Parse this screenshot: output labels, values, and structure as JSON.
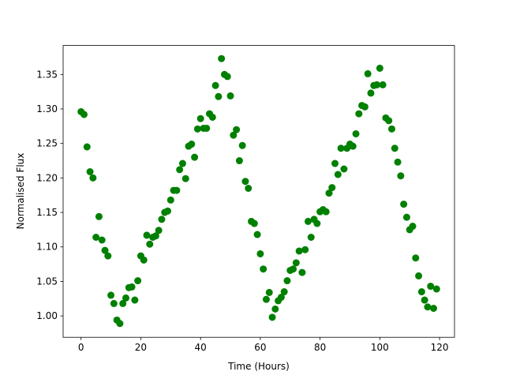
{
  "chart_data": {
    "type": "scatter",
    "xlabel": "Time (Hours)",
    "ylabel": "Normalised Flux",
    "color": "#008000",
    "xlim": [
      -6,
      125
    ],
    "ylim": [
      0.969,
      1.392
    ],
    "xticks": [
      0,
      20,
      40,
      60,
      80,
      100,
      120
    ],
    "yticks": [
      {
        "value": 1.0,
        "label": "1.00"
      },
      1.05,
      {
        "value": 1.1,
        "label": "1.10"
      },
      1.15,
      {
        "value": 1.2,
        "label": "1.20"
      },
      1.25,
      {
        "value": 1.3,
        "label": "1.30"
      },
      1.35
    ],
    "x": [
      0,
      1,
      2,
      3,
      4,
      5,
      6,
      7,
      8,
      9,
      10,
      11,
      12,
      13,
      14,
      15,
      16,
      17,
      18,
      19,
      20,
      21,
      22,
      23,
      24,
      25,
      26,
      27,
      28,
      29,
      30,
      31,
      32,
      33,
      34,
      35,
      36,
      37,
      38,
      39,
      40,
      41,
      42,
      43,
      44,
      45,
      46,
      47,
      48,
      49,
      50,
      51,
      52,
      53,
      54,
      55,
      56,
      57,
      58,
      59,
      60,
      61,
      62,
      63,
      64,
      65,
      66,
      67,
      68,
      69,
      70,
      71,
      72,
      73,
      74,
      75,
      76,
      77,
      78,
      79,
      80,
      81,
      82,
      83,
      84,
      85,
      86,
      87,
      88,
      89,
      90,
      91,
      92,
      93,
      94,
      95,
      96,
      97,
      98,
      99,
      100,
      101,
      102,
      103,
      104,
      105,
      106,
      107,
      108,
      109,
      110,
      111,
      112,
      113,
      114,
      115,
      116,
      117,
      118,
      119
    ],
    "values": [
      1.296,
      1.292,
      1.245,
      1.209,
      1.2,
      1.114,
      1.144,
      1.11,
      1.095,
      1.087,
      1.03,
      1.018,
      0.994,
      0.989,
      1.018,
      1.026,
      1.041,
      1.042,
      1.023,
      1.051,
      1.087,
      1.081,
      1.117,
      1.104,
      1.114,
      1.116,
      1.124,
      1.14,
      1.15,
      1.152,
      1.168,
      1.182,
      1.182,
      1.212,
      1.221,
      1.199,
      1.246,
      1.249,
      1.23,
      1.271,
      1.286,
      1.272,
      1.272,
      1.293,
      1.288,
      1.334,
      1.318,
      1.373,
      1.35,
      1.347,
      1.319,
      1.262,
      1.27,
      1.225,
      1.247,
      1.195,
      1.185,
      1.137,
      1.134,
      1.118,
      1.09,
      1.068,
      1.024,
      1.034,
      0.998,
      1.01,
      1.022,
      1.027,
      1.035,
      1.051,
      1.066,
      1.068,
      1.077,
      1.094,
      1.063,
      1.096,
      1.137,
      1.114,
      1.14,
      1.134,
      1.151,
      1.154,
      1.151,
      1.178,
      1.186,
      1.221,
      1.205,
      1.243,
      1.213,
      1.243,
      1.249,
      1.246,
      1.264,
      1.293,
      1.305,
      1.303,
      1.351,
      1.323,
      1.334,
      1.335,
      1.359,
      1.335,
      1.287,
      1.283,
      1.271,
      1.243,
      1.223,
      1.203,
      1.162,
      1.143,
      1.125,
      1.13,
      1.084,
      1.058,
      1.035,
      1.023,
      1.013,
      1.043,
      1.011,
      1.039
    ]
  }
}
